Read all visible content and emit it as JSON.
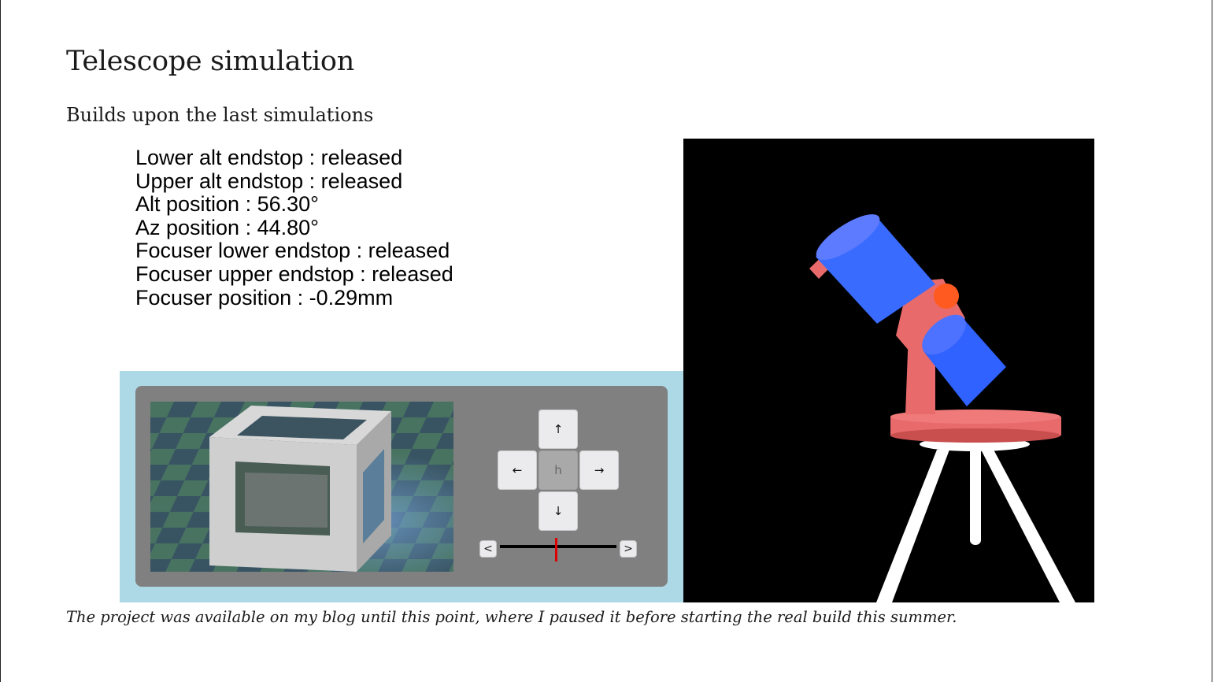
{
  "page": {
    "title": "Telescope simulation",
    "subtitle": "Builds upon the last simulations",
    "caption": "The project was available on my blog until this point, where I paused it before starting the real build this summer."
  },
  "status": {
    "lines": [
      "Lower alt endstop : released",
      "Upper alt endstop : released",
      "Alt position : 56.30°",
      "Az position : 44.80°",
      "Focuser lower endstop : released",
      "Focuser upper endstop : released",
      "Focuser position : -0.29mm"
    ]
  },
  "controls": {
    "up": "↑",
    "down": "↓",
    "left": "←",
    "right": "→",
    "home": "h",
    "slider_left": "<",
    "slider_right": ">",
    "slider_value_fraction": 0.48
  },
  "colors": {
    "panel_bg": "#add8e6",
    "inner_bg": "#808080",
    "tube": "#3a6bff",
    "mount": "#e86a6a",
    "tripod": "#ffffff",
    "knob": "#ff5a1f",
    "slider_thumb": "#dd0000"
  },
  "icons": {
    "camera_view": "wireframe-cube-render",
    "scene": "telescope-3d-render"
  }
}
